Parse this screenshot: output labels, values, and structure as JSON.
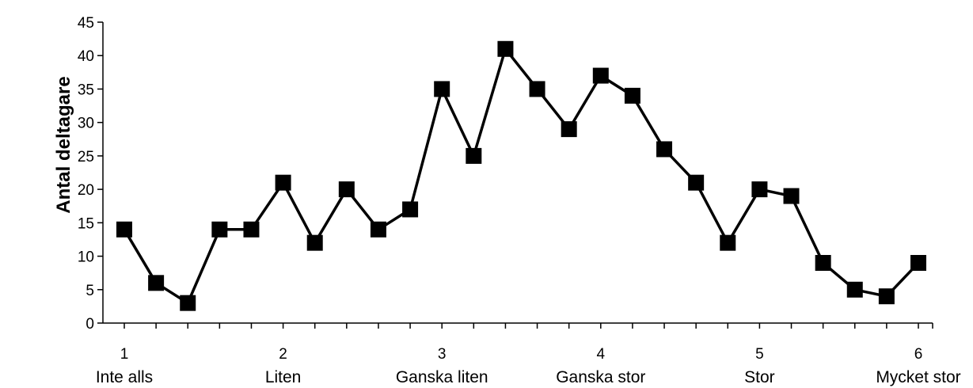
{
  "chart_data": {
    "type": "line",
    "title": "",
    "xlabel": "",
    "ylabel": "Antal deltagare",
    "ylim": [
      0,
      45
    ],
    "yticks": [
      0,
      5,
      10,
      15,
      20,
      25,
      30,
      35,
      40,
      45
    ],
    "xlim": [
      1,
      6
    ],
    "major_ticks": [
      {
        "value": 1,
        "number": "1",
        "label": "Inte alls"
      },
      {
        "value": 2,
        "number": "2",
        "label": "Liten"
      },
      {
        "value": 3,
        "number": "3",
        "label": "Ganska liten"
      },
      {
        "value": 4,
        "number": "4",
        "label": "Ganska stor"
      },
      {
        "value": 5,
        "number": "5",
        "label": "Stor"
      },
      {
        "value": 6,
        "number": "6",
        "label": "Mycket stor"
      }
    ],
    "minor_tick_step": 0.2,
    "grid": false,
    "legend": "none",
    "marker": "square",
    "line_color": "#000000",
    "series": [
      {
        "x": [
          1,
          1.2,
          1.4,
          1.6,
          1.8,
          2,
          2.2,
          2.4,
          2.6,
          2.8,
          3,
          3.2,
          3.4,
          3.6,
          3.8,
          4,
          4.2,
          4.4,
          4.6,
          4.8,
          5,
          5.2,
          5.4,
          5.6,
          5.8,
          6
        ],
        "values": [
          14,
          6,
          3,
          14,
          14,
          21,
          12,
          20,
          14,
          17,
          35,
          25,
          41,
          35,
          29,
          37,
          34,
          26,
          21,
          12,
          20,
          19,
          9,
          5,
          4,
          9
        ]
      }
    ]
  }
}
